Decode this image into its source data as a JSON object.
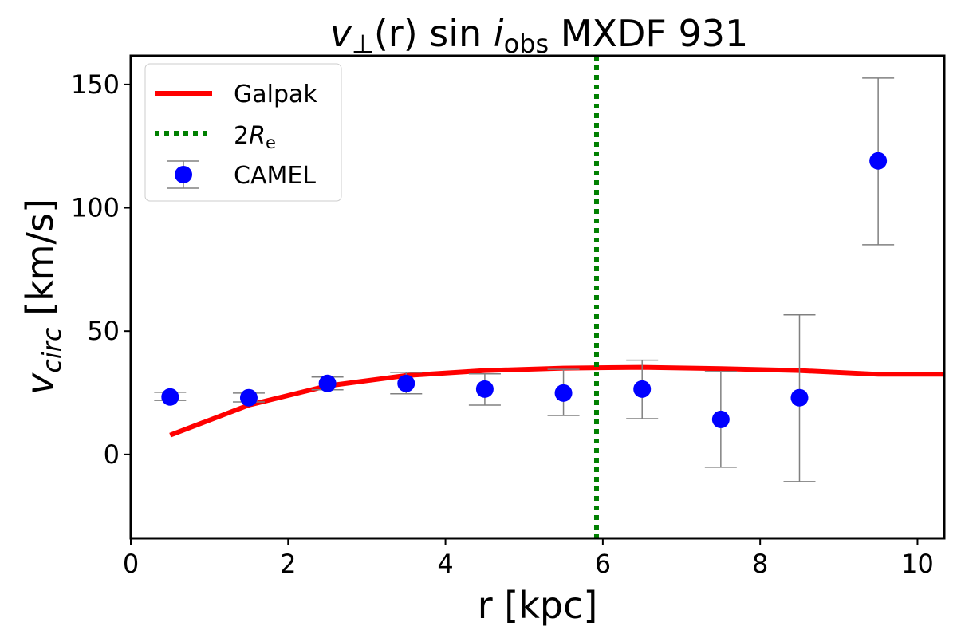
{
  "chart_data": {
    "type": "scatter",
    "title": "v⊥(r) sin i_obs MXDF 931",
    "title_parts": {
      "v": "v",
      "perp": "⊥",
      "r": "(r) sin ",
      "i": "i",
      "obs": "obs",
      "rest": " MXDF 931"
    },
    "xlabel": "r [kpc]",
    "ylabel": {
      "v": "v",
      "sub": "circ",
      "unit": " [km/s]"
    },
    "xlim": [
      0,
      10.34
    ],
    "ylim": [
      -34,
      161.6
    ],
    "xticks": [
      0,
      2,
      4,
      6,
      8,
      10
    ],
    "yticks": [
      0,
      50,
      100,
      150
    ],
    "grid": false,
    "legend_position": "top-left",
    "legend": [
      "Galpak",
      "2R_e",
      "CAMEL"
    ],
    "legend_2re": {
      "base": "2",
      "R": "R",
      "sub": "e"
    },
    "series": [
      {
        "name": "Galpak",
        "type": "line",
        "color": "#ff0000",
        "x": [
          0.5,
          1.5,
          2.5,
          3.5,
          4.5,
          5.5,
          6.5,
          7.5,
          8.5,
          9.5,
          10.34
        ],
        "y": [
          7.8,
          20.0,
          27.8,
          32.0,
          34.0,
          35.0,
          35.3,
          34.8,
          34.0,
          32.5,
          32.5
        ]
      },
      {
        "name": "2R_e",
        "type": "vline",
        "color": "#008000",
        "x": 5.92
      },
      {
        "name": "CAMEL",
        "type": "errorbar",
        "color": "#0000ff",
        "errcolor": "#808080",
        "x": [
          0.5,
          1.5,
          2.5,
          3.5,
          4.5,
          5.5,
          6.5,
          7.5,
          8.5,
          9.5
        ],
        "y": [
          23.3,
          23.0,
          28.8,
          28.8,
          26.5,
          24.9,
          26.5,
          14.2,
          23.0,
          119.0
        ],
        "ylow": [
          21.9,
          21.3,
          26.2,
          24.6,
          20.0,
          15.8,
          14.5,
          -5.2,
          -11.0,
          85.0
        ],
        "yhigh": [
          25.2,
          24.9,
          31.4,
          33.3,
          32.7,
          34.5,
          38.2,
          33.6,
          56.6,
          152.6
        ]
      }
    ]
  }
}
